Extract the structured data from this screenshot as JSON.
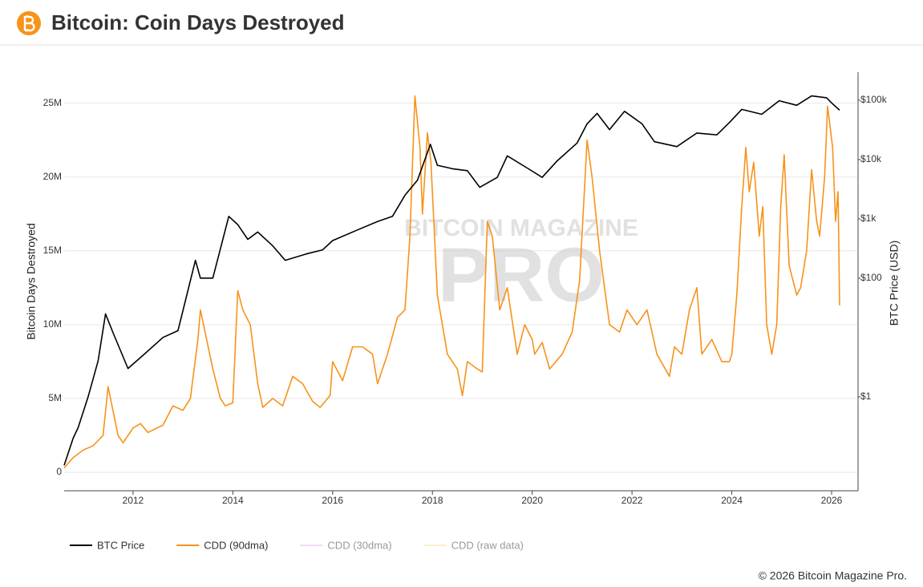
{
  "chart_data": {
    "type": "line",
    "title": "Bitcoin: Coin Days Destroyed",
    "watermark": [
      "BITCOIN MAGAZINE",
      "PRO"
    ],
    "copyright": "© 2026 Bitcoin Magazine Pro.",
    "y_label": "Bitcoin Days Destroyed",
    "y2_label": "BTC Price (USD)",
    "xlim": [
      2010.62,
      2026.53
    ],
    "xticks": [
      2012,
      2014,
      2016,
      2018,
      2020,
      2022,
      2024,
      2026
    ],
    "ylim": [
      -1250000,
      27100000
    ],
    "yticks": [
      {
        "value": 0,
        "label": "0"
      },
      {
        "value": 5000000,
        "label": "5M"
      },
      {
        "value": 10000000,
        "label": "10M"
      },
      {
        "value": 15000000,
        "label": "15M"
      },
      {
        "value": 20000000,
        "label": "20M"
      },
      {
        "value": 25000000,
        "label": "25M"
      }
    ],
    "y2lim": [
      0.026,
      297000
    ],
    "y2log": true,
    "y2ticks": [
      {
        "value": 1,
        "label": "$1"
      },
      {
        "value": 100,
        "label": "$100"
      },
      {
        "value": 1000,
        "label": "$1k"
      },
      {
        "value": 10000,
        "label": "$10k"
      },
      {
        "value": 100000,
        "label": "$100k"
      }
    ],
    "grid": true,
    "series": [
      {
        "name": "BTC Price",
        "color": "#000000",
        "axis": "y2",
        "visible": true,
        "x": [
          2010.62,
          2010.8,
          2010.9,
          2011.1,
          2011.3,
          2011.45,
          2011.6,
          2011.9,
          2012.2,
          2012.6,
          2012.9,
          2013.25,
          2013.35,
          2013.6,
          2013.92,
          2014.1,
          2014.3,
          2014.5,
          2014.8,
          2015.05,
          2015.5,
          2015.8,
          2016.0,
          2016.5,
          2016.9,
          2017.2,
          2017.45,
          2017.7,
          2017.96,
          2018.1,
          2018.4,
          2018.7,
          2018.95,
          2019.3,
          2019.5,
          2019.9,
          2020.2,
          2020.5,
          2020.9,
          2021.1,
          2021.3,
          2021.55,
          2021.85,
          2022.2,
          2022.45,
          2022.9,
          2023.3,
          2023.7,
          2023.95,
          2024.2,
          2024.6,
          2024.95,
          2025.3,
          2025.6,
          2025.9,
          2026.0,
          2026.16
        ],
        "values": [
          0.07,
          0.2,
          0.3,
          1,
          4,
          25,
          12,
          3,
          5,
          10,
          13,
          200,
          100,
          100,
          1100,
          800,
          450,
          600,
          350,
          200,
          260,
          300,
          430,
          650,
          900,
          1100,
          2500,
          4500,
          18000,
          8000,
          7000,
          6500,
          3400,
          5000,
          11500,
          7200,
          5000,
          9500,
          19000,
          40000,
          60000,
          32000,
          65000,
          40000,
          20000,
          16500,
          28000,
          26000,
          42000,
          70000,
          58000,
          98000,
          82000,
          118000,
          110000,
          90000,
          68000
        ]
      },
      {
        "name": "CDD (90dma)",
        "color": "#f7931a",
        "axis": "y",
        "visible": true,
        "x": [
          2010.62,
          2010.8,
          2011.0,
          2011.2,
          2011.4,
          2011.5,
          2011.7,
          2011.8,
          2012.0,
          2012.15,
          2012.3,
          2012.6,
          2012.8,
          2013.0,
          2013.15,
          2013.3,
          2013.35,
          2013.6,
          2013.75,
          2013.85,
          2014.0,
          2014.05,
          2014.1,
          2014.2,
          2014.35,
          2014.5,
          2014.6,
          2014.8,
          2015.0,
          2015.2,
          2015.4,
          2015.6,
          2015.75,
          2015.95,
          2016.0,
          2016.2,
          2016.4,
          2016.6,
          2016.8,
          2016.9,
          2017.1,
          2017.3,
          2017.45,
          2017.55,
          2017.65,
          2017.75,
          2017.8,
          2017.9,
          2017.97,
          2018.1,
          2018.3,
          2018.5,
          2018.6,
          2018.7,
          2018.9,
          2019.0,
          2019.1,
          2019.2,
          2019.35,
          2019.5,
          2019.7,
          2019.85,
          2020.0,
          2020.05,
          2020.2,
          2020.35,
          2020.6,
          2020.8,
          2020.95,
          2021.1,
          2021.2,
          2021.35,
          2021.55,
          2021.75,
          2021.9,
          2022.1,
          2022.3,
          2022.5,
          2022.75,
          2022.85,
          2023.0,
          2023.15,
          2023.3,
          2023.4,
          2023.6,
          2023.8,
          2023.95,
          2024.0,
          2024.1,
          2024.2,
          2024.28,
          2024.35,
          2024.44,
          2024.55,
          2024.62,
          2024.7,
          2024.8,
          2024.9,
          2024.98,
          2025.05,
          2025.15,
          2025.3,
          2025.38,
          2025.5,
          2025.6,
          2025.7,
          2025.76,
          2025.86,
          2025.92,
          2026.02,
          2026.08,
          2026.13,
          2026.16
        ],
        "values": [
          300000,
          1000000,
          1500000,
          1800000,
          2500000,
          5800000,
          2500000,
          2000000,
          3000000,
          3300000,
          2700000,
          3200000,
          4500000,
          4200000,
          5000000,
          9000000,
          11000000,
          7000000,
          5000000,
          4500000,
          4700000,
          8500000,
          12300000,
          11000000,
          10000000,
          6000000,
          4400000,
          5000000,
          4500000,
          6500000,
          6000000,
          4800000,
          4400000,
          5200000,
          7500000,
          6200000,
          8500000,
          8500000,
          8000000,
          6000000,
          8000000,
          10500000,
          11000000,
          16000000,
          25500000,
          22000000,
          17500000,
          23000000,
          21000000,
          12000000,
          8000000,
          7000000,
          5200000,
          7500000,
          7000000,
          6800000,
          17000000,
          16000000,
          11000000,
          12500000,
          8000000,
          10000000,
          9000000,
          8000000,
          8800000,
          7000000,
          8000000,
          9500000,
          13000000,
          22500000,
          20000000,
          15000000,
          10000000,
          9500000,
          11000000,
          10000000,
          11000000,
          8000000,
          6500000,
          8500000,
          8000000,
          11000000,
          12500000,
          8000000,
          9000000,
          7500000,
          7500000,
          8000000,
          12000000,
          18000000,
          22000000,
          19000000,
          21000000,
          16000000,
          18000000,
          10000000,
          8000000,
          10000000,
          18000000,
          21500000,
          14000000,
          12000000,
          12500000,
          15000000,
          20500000,
          17000000,
          16000000,
          20000000,
          24800000,
          22000000,
          17000000,
          19000000,
          11300000
        ]
      },
      {
        "name": "CDD (30dma)",
        "color": "#f0b4f5",
        "axis": "y",
        "visible": false
      },
      {
        "name": "CDD (raw data)",
        "color": "#f5dc9c",
        "axis": "y",
        "visible": false
      }
    ]
  }
}
